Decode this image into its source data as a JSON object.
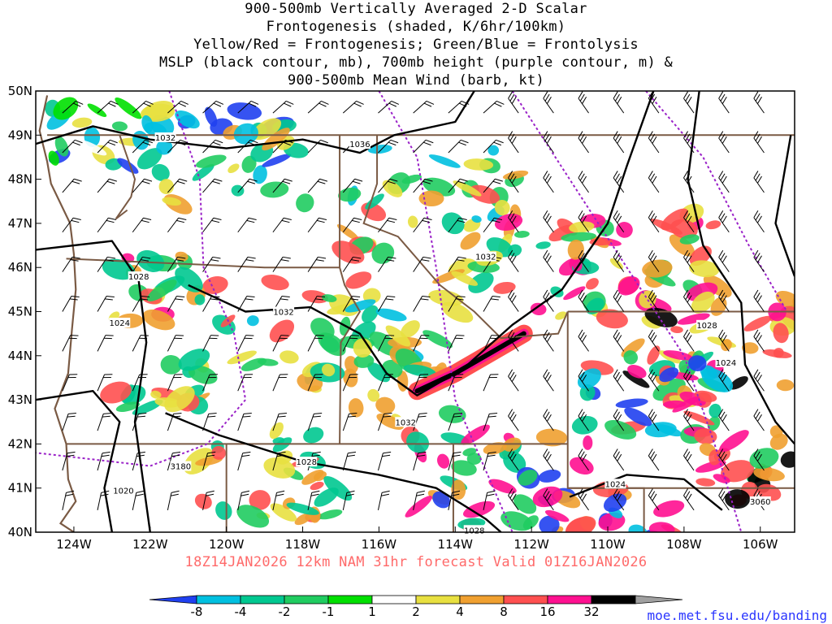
{
  "title_lines": [
    "900-500mb Vertically Averaged 2-D Scalar",
    "Frontogenesis (shaded, K/6hr/100km)",
    "Yellow/Red = Frontogenesis;  Green/Blue = Frontolysis",
    "MSLP (black contour, mb), 700mb height (purple contour, m) &",
    "900-500mb Mean Wind (barb, kt)"
  ],
  "map": {
    "lat_labels": [
      "50N",
      "49N",
      "48N",
      "47N",
      "46N",
      "45N",
      "44N",
      "43N",
      "42N",
      "41N",
      "40N"
    ],
    "lon_labels": [
      "124W",
      "122W",
      "120W",
      "118W",
      "116W",
      "114W",
      "112W",
      "110W",
      "108W",
      "106W"
    ],
    "mslp_contour_labels": [
      {
        "text": "1032",
        "lon": -121.6,
        "lat": 48.95
      },
      {
        "text": "1036",
        "lon": -116.5,
        "lat": 48.8
      },
      {
        "text": "1032",
        "lon": -113.2,
        "lat": 46.25
      },
      {
        "text": "1028",
        "lon": -122.3,
        "lat": 45.8
      },
      {
        "text": "1024",
        "lon": -122.8,
        "lat": 44.75
      },
      {
        "text": "1032",
        "lon": -118.5,
        "lat": 45.0
      },
      {
        "text": "1032",
        "lon": -115.3,
        "lat": 42.5
      },
      {
        "text": "1028",
        "lon": -117.9,
        "lat": 41.6
      },
      {
        "text": "1020",
        "lon": -122.7,
        "lat": 40.95
      },
      {
        "text": "1028",
        "lon": -107.4,
        "lat": 44.7
      },
      {
        "text": "1024",
        "lon": -106.9,
        "lat": 43.85
      },
      {
        "text": "1024",
        "lon": -109.8,
        "lat": 41.1
      },
      {
        "text": "1028",
        "lon": -113.5,
        "lat": 40.05
      }
    ],
    "height_contour_labels": [
      {
        "text": "3180",
        "lon": -121.2,
        "lat": 41.5
      },
      {
        "text": "3060",
        "lon": -106.0,
        "lat": 40.7
      }
    ]
  },
  "colorbar": {
    "colors": [
      "#2040f0",
      "#00c0e0",
      "#00c890",
      "#20cc60",
      "#00e000",
      "#ffffff",
      "#e8e040",
      "#f0a030",
      "#ff5050",
      "#ff1090",
      "#000000",
      "#a0a0a0"
    ],
    "tick_labels": [
      "-8",
      "-4",
      "-2",
      "-1",
      "1",
      "2",
      "4",
      "8",
      "16",
      "32"
    ]
  },
  "footer": "18Z14JAN2026 12km NAM 31hr forecast Valid 01Z16JAN2026",
  "credit": "moe.met.fsu.edu/banding"
}
